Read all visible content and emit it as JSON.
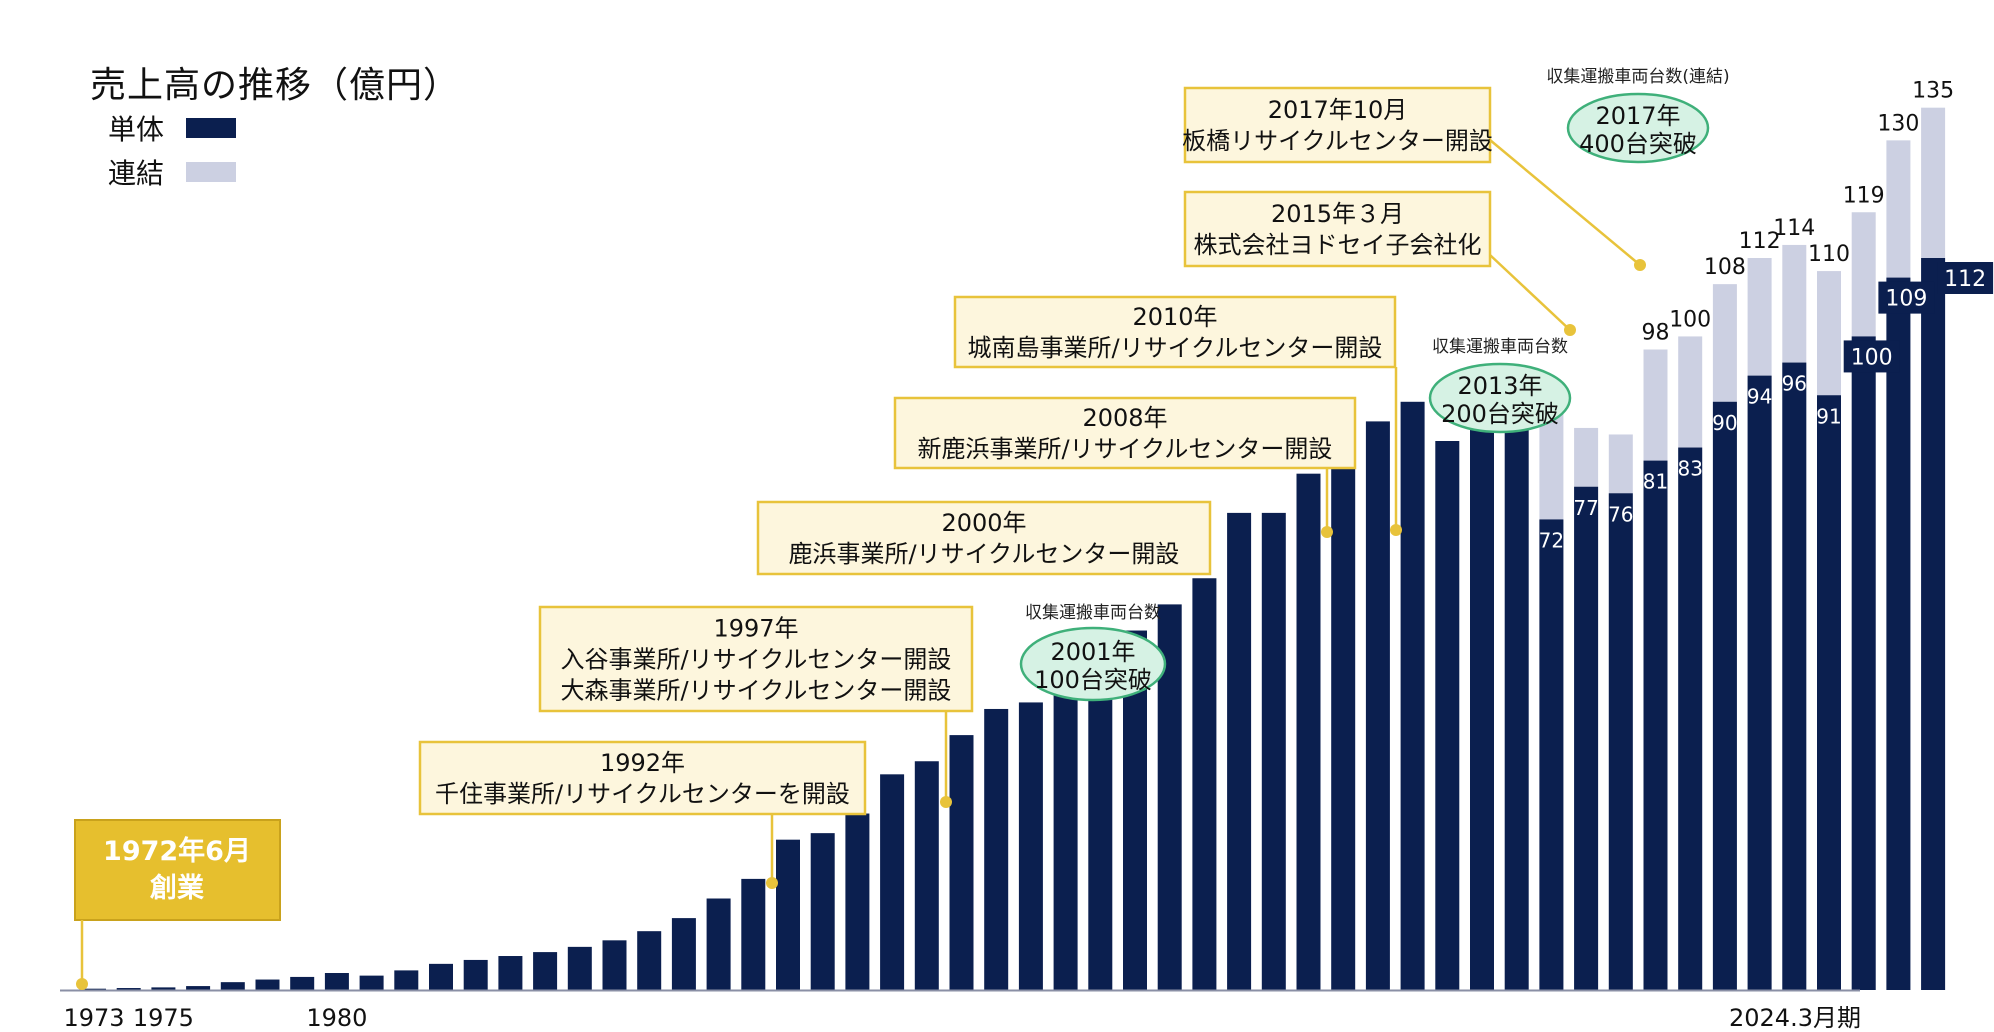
{
  "chart_data": {
    "type": "bar",
    "title": "売上高の推移（億円）",
    "colors": {
      "single": "#0b1f4f",
      "consolidated": "#ccd0e2",
      "annotation_fill": "#fdf6dd",
      "annotation_border": "#e8c33b",
      "founding_fill": "#e6bf2e",
      "milestone_fill": "#d6f2e4",
      "milestone_border": "#3fb07a"
    },
    "series": [
      {
        "name": "単体",
        "values": [
          0.2,
          0.3,
          0.4,
          0.6,
          1.2,
          1.6,
          2.0,
          2.6,
          2.2,
          3.0,
          4.0,
          4.6,
          5.2,
          5.8,
          6.6,
          7.6,
          9.0,
          11.0,
          14.0,
          17.0,
          23.0,
          24.0,
          27.0,
          33.0,
          35.0,
          39.0,
          43.0,
          44.0,
          47.0,
          53.0,
          55.0,
          59.0,
          63.0,
          73.0,
          73.0,
          79.0,
          82.0,
          87.0,
          90.0,
          84.0,
          88.0,
          92.0,
          72.0,
          77.0,
          76.0,
          81.0,
          83.0,
          90.0,
          94.0,
          96.0,
          91.0,
          100.0,
          109.0,
          112.0
        ]
      },
      {
        "name": "連結",
        "values": [
          null,
          null,
          null,
          null,
          null,
          null,
          null,
          null,
          null,
          null,
          null,
          null,
          null,
          null,
          null,
          null,
          null,
          null,
          null,
          null,
          null,
          null,
          null,
          null,
          null,
          null,
          null,
          null,
          null,
          null,
          null,
          null,
          null,
          null,
          null,
          null,
          null,
          null,
          null,
          null,
          null,
          null,
          89.0,
          86.0,
          85.0,
          98.0,
          100.0,
          108.0,
          112.0,
          114.0,
          110.0,
          119.0,
          130.0,
          135.0
        ]
      }
    ],
    "single_labels": [
      "",
      "",
      "",
      "",
      "",
      "",
      "",
      "",
      "",
      "",
      "",
      "",
      "",
      "",
      "",
      "",
      "",
      "",
      "",
      "",
      "",
      "",
      "",
      "",
      "",
      "",
      "",
      "",
      "",
      "",
      "",
      "",
      "",
      "",
      "",
      "",
      "",
      "",
      "",
      "",
      "",
      "",
      "72",
      "77",
      "76",
      "81",
      "83",
      "90",
      "94",
      "96",
      "91",
      "100",
      "109",
      "112"
    ],
    "consolidated_labels": [
      "",
      "",
      "",
      "",
      "",
      "",
      "",
      "",
      "",
      "",
      "",
      "",
      "",
      "",
      "",
      "",
      "",
      "",
      "",
      "",
      "",
      "",
      "",
      "",
      "",
      "",
      "",
      "",
      "",
      "",
      "",
      "",
      "",
      "",
      "",
      "",
      "",
      "",
      "",
      "",
      "",
      "",
      "",
      "",
      "",
      "98",
      "100",
      "108",
      "112",
      "114",
      "110",
      "119",
      "130",
      "135"
    ],
    "x_tick_labels": [
      {
        "index": 0,
        "text": "1973"
      },
      {
        "index": 2,
        "text": "1975"
      },
      {
        "index": 7,
        "text": "1980"
      },
      {
        "index": 53,
        "text": "2024.3月期"
      }
    ],
    "ylim": [
      0,
      140
    ],
    "legend": "top-left"
  },
  "legend": {
    "single_label": "単体",
    "consolidated_label": "連結"
  },
  "annotations": [
    {
      "lines": [
        "2017年10月",
        "板橋リサイクルセンター開設"
      ],
      "bar_index": 47
    },
    {
      "lines": [
        "2015年３月",
        "株式会社ヨドセイ子会社化"
      ],
      "bar_index": 45
    },
    {
      "lines": [
        "2010年",
        "城南島事業所/リサイクルセンター開設"
      ],
      "bar_index": 40
    },
    {
      "lines": [
        "2008年",
        "新鹿浜事業所/リサイクルセンター開設"
      ],
      "bar_index": 38
    },
    {
      "lines": [
        "2000年",
        "鹿浜事業所/リサイクルセンター開設"
      ],
      "bar_index": null
    },
    {
      "lines": [
        "1997年",
        "入谷事業所/リサイクルセンター開設",
        "大森事業所/リサイクルセンター開設"
      ],
      "bar_index": 25
    },
    {
      "lines": [
        "1992年",
        "千住事業所/リサイクルセンターを開設"
      ],
      "bar_index": 20
    }
  ],
  "milestones": [
    {
      "caption": "収集運搬車両台数(連結)",
      "lines": [
        "2017年",
        "400台突破"
      ]
    },
    {
      "caption": "収集運搬車両台数",
      "lines": [
        "2013年",
        "200台突破"
      ]
    },
    {
      "caption": "収集運搬車両台数",
      "lines": [
        "2001年",
        "100台突破"
      ]
    }
  ],
  "founding": {
    "lines": [
      "1972年6月",
      "創業"
    ]
  }
}
